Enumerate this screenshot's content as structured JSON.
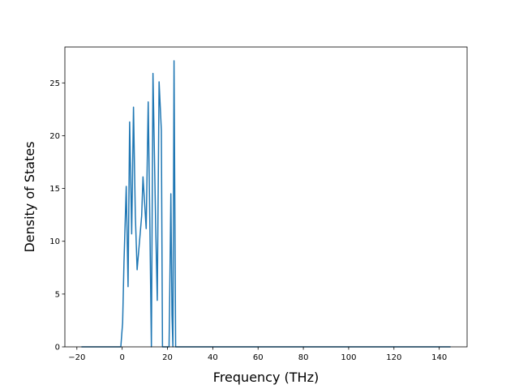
{
  "chart_data": {
    "type": "line",
    "title": "",
    "xlabel": "Frequency (THz)",
    "ylabel": "Density of States",
    "xlim": [
      -25.3,
      152.3
    ],
    "ylim": [
      0,
      28.4
    ],
    "grid": false,
    "xticks": [
      -20,
      0,
      20,
      40,
      60,
      80,
      100,
      120,
      140
    ],
    "yticks": [
      0,
      5,
      10,
      15,
      20,
      25
    ],
    "series": [
      {
        "color": "#1f77b4",
        "points": [
          [
            -18.0,
            0
          ],
          [
            -0.6,
            0
          ],
          [
            0.2,
            2.3
          ],
          [
            0.8,
            8.0
          ],
          [
            1.8,
            15.2
          ],
          [
            2.6,
            5.7
          ],
          [
            3.3,
            21.3
          ],
          [
            4.2,
            10.7
          ],
          [
            5.0,
            22.7
          ],
          [
            5.8,
            12.5
          ],
          [
            6.6,
            7.3
          ],
          [
            8.6,
            12.4
          ],
          [
            9.2,
            16.1
          ],
          [
            10.6,
            11.2
          ],
          [
            11.5,
            23.2
          ],
          [
            12.2,
            12.0
          ],
          [
            12.9,
            0
          ],
          [
            13.6,
            25.9
          ],
          [
            14.8,
            11.4
          ],
          [
            15.5,
            4.4
          ],
          [
            16.3,
            25.1
          ],
          [
            17.3,
            20.5
          ],
          [
            17.8,
            0
          ],
          [
            20.7,
            0
          ],
          [
            21.0,
            5.0
          ],
          [
            21.5,
            14.5
          ],
          [
            22.0,
            3.0
          ],
          [
            22.4,
            0
          ],
          [
            22.9,
            27.1
          ],
          [
            23.6,
            0
          ],
          [
            145.0,
            0
          ]
        ]
      }
    ]
  }
}
